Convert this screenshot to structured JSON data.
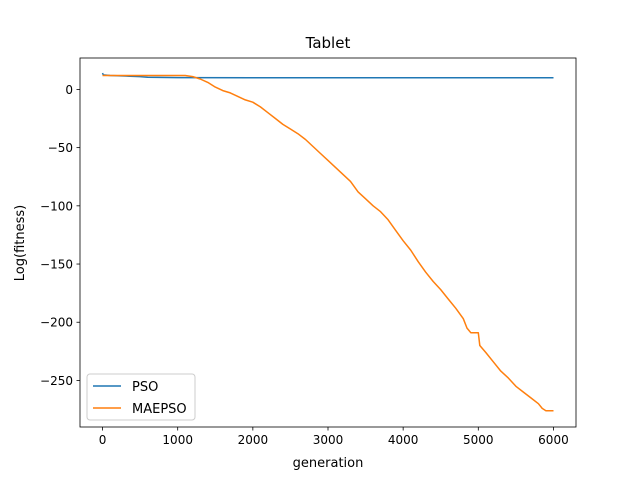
{
  "chart_data": {
    "type": "line",
    "title": "Tablet",
    "xlabel": "generation",
    "ylabel": "Log(fitness)",
    "xlim": [
      -300,
      6300
    ],
    "ylim": [
      -290,
      27
    ],
    "xticks": [
      0,
      1000,
      2000,
      3000,
      4000,
      5000,
      6000
    ],
    "xtick_labels": [
      "0",
      "1000",
      "2000",
      "3000",
      "4000",
      "5000",
      "6000"
    ],
    "yticks": [
      0,
      -50,
      -100,
      -150,
      -200,
      -250
    ],
    "ytick_labels": [
      "0",
      "−50",
      "−100",
      "−150",
      "−200",
      "−250"
    ],
    "grid": false,
    "legend": {
      "position": "lower-left"
    },
    "series": [
      {
        "name": "PSO",
        "color": "#1f77b4",
        "x": [
          0,
          10,
          100,
          300,
          500,
          600,
          1000,
          2000,
          3000,
          4000,
          5000,
          6000
        ],
        "y": [
          14,
          12.5,
          12,
          11.5,
          11,
          10.4,
          10.2,
          10.1,
          10.1,
          10.1,
          10.1,
          10
        ]
      },
      {
        "name": "MAEPSO",
        "color": "#ff7f0e",
        "x": [
          0,
          10,
          100,
          500,
          1000,
          1100,
          1200,
          1300,
          1400,
          1500,
          1600,
          1700,
          1800,
          1900,
          2000,
          2100,
          2200,
          2300,
          2400,
          2500,
          2600,
          2700,
          2800,
          2900,
          3000,
          3100,
          3200,
          3300,
          3400,
          3500,
          3600,
          3700,
          3800,
          3900,
          4000,
          4100,
          4200,
          4300,
          4400,
          4500,
          4600,
          4700,
          4800,
          4850,
          4900,
          5000,
          5020,
          5100,
          5200,
          5300,
          5400,
          5500,
          5600,
          5700,
          5800,
          5850,
          5900,
          6000
        ],
        "y": [
          12,
          12,
          12,
          12,
          12,
          12,
          11,
          9,
          6,
          2,
          -1,
          -3,
          -6,
          -9,
          -11,
          -15,
          -20,
          -25,
          -30,
          -34,
          -38,
          -43,
          -49,
          -55,
          -61,
          -67,
          -73,
          -79,
          -88,
          -94,
          -100,
          -105,
          -112,
          -121,
          -130,
          -138,
          -148,
          -157,
          -165,
          -172,
          -180,
          -188,
          -197,
          -205,
          -209,
          -209,
          -220,
          -226,
          -234,
          -242,
          -248,
          -255,
          -260,
          -265,
          -270,
          -274,
          -276,
          -276
        ]
      }
    ]
  }
}
